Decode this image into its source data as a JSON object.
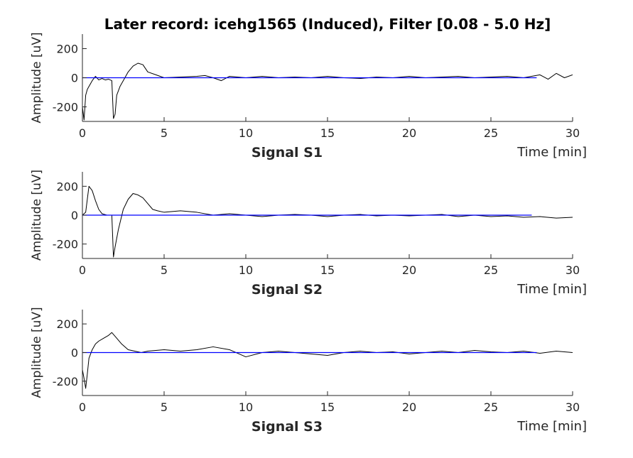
{
  "title": "Later record: icehg1565 (Induced), Filter [0.08 - 5.0 Hz]",
  "colors": {
    "raw": "#000000",
    "filtered": "#0000ff"
  },
  "chart_data": [
    {
      "type": "line",
      "xlabel": "Signal S1",
      "xunit_label": "Time [min]",
      "ylabel": "Amplitude [uV]",
      "xlim": [
        0,
        30
      ],
      "ylim": [
        -300,
        300
      ],
      "xticks": [
        0,
        5,
        10,
        15,
        20,
        25,
        30
      ],
      "yticks": [
        -200,
        0,
        200
      ],
      "series": [
        {
          "color": "#000000",
          "x": [
            0,
            0.1,
            0.2,
            0.3,
            0.4,
            0.6,
            0.8,
            1.0,
            1.2,
            1.4,
            1.6,
            1.8,
            1.9,
            2.0,
            2.1,
            2.3,
            2.5,
            2.8,
            3.1,
            3.4,
            3.7,
            4.0,
            4.5,
            5,
            6,
            7,
            7.5,
            8,
            8.5,
            9,
            10,
            11,
            12,
            13,
            14,
            15,
            16,
            17,
            18,
            19,
            20,
            21,
            22,
            23,
            24,
            25,
            26,
            27,
            28,
            28.5,
            29,
            29.5,
            30
          ],
          "values": [
            -200,
            -290,
            -120,
            -80,
            -60,
            -20,
            10,
            -15,
            -5,
            -15,
            -10,
            -20,
            -280,
            -250,
            -120,
            -60,
            -20,
            40,
            80,
            100,
            90,
            40,
            20,
            0,
            5,
            10,
            15,
            0,
            -20,
            10,
            0,
            10,
            0,
            5,
            0,
            10,
            0,
            -5,
            5,
            0,
            10,
            0,
            5,
            10,
            0,
            5,
            10,
            0,
            20,
            -10,
            30,
            0,
            20
          ]
        },
        {
          "color": "#0000ff",
          "x": [
            0,
            1,
            2,
            2.4,
            2.5,
            3,
            4,
            5,
            6,
            7,
            8,
            9,
            10,
            11,
            12,
            13,
            14,
            15,
            16,
            17,
            18,
            19,
            20,
            21,
            22,
            23,
            24,
            25,
            26,
            27,
            27.8
          ],
          "values": [
            0,
            0,
            0,
            0,
            0,
            0,
            0,
            0,
            0,
            0,
            0,
            0,
            0,
            0,
            0,
            0,
            0,
            0,
            0,
            0,
            0,
            0,
            0,
            0,
            0,
            0,
            0,
            0,
            0,
            0,
            0
          ]
        }
      ]
    },
    {
      "type": "line",
      "xlabel": "Signal S2",
      "xunit_label": "Time [min]",
      "ylabel": "Amplitude [uV]",
      "xlim": [
        0,
        30
      ],
      "ylim": [
        -300,
        300
      ],
      "xticks": [
        0,
        5,
        10,
        15,
        20,
        25,
        30
      ],
      "yticks": [
        -200,
        0,
        200
      ],
      "series": [
        {
          "color": "#000000",
          "x": [
            0,
            0.2,
            0.4,
            0.6,
            0.8,
            1.0,
            1.2,
            1.5,
            1.8,
            1.9,
            2.0,
            2.2,
            2.5,
            2.8,
            3.1,
            3.4,
            3.7,
            4.0,
            4.3,
            4.6,
            5,
            6,
            7,
            8,
            9,
            10,
            11,
            12,
            13,
            14,
            15,
            16,
            17,
            18,
            19,
            20,
            21,
            22,
            23,
            24,
            25,
            26,
            27,
            28,
            29,
            30
          ],
          "values": [
            0,
            20,
            200,
            170,
            100,
            40,
            10,
            0,
            0,
            -290,
            -220,
            -100,
            40,
            110,
            150,
            140,
            120,
            80,
            40,
            30,
            20,
            30,
            20,
            0,
            10,
            0,
            -10,
            0,
            5,
            0,
            -10,
            0,
            5,
            -5,
            0,
            -5,
            0,
            5,
            -10,
            0,
            -10,
            -5,
            -15,
            -10,
            -20,
            -15
          ]
        },
        {
          "color": "#0000ff",
          "x": [
            0,
            1,
            2,
            2.4,
            3,
            4,
            5,
            6,
            7,
            8,
            9,
            10,
            11,
            12,
            13,
            14,
            15,
            16,
            17,
            18,
            19,
            20,
            21,
            22,
            23,
            24,
            25,
            26,
            27,
            27.5
          ],
          "values": [
            0,
            0,
            0,
            0,
            0,
            0,
            0,
            0,
            0,
            0,
            0,
            0,
            0,
            0,
            0,
            0,
            0,
            0,
            0,
            0,
            0,
            0,
            0,
            0,
            0,
            0,
            0,
            0,
            0,
            0
          ]
        }
      ]
    },
    {
      "type": "line",
      "xlabel": "Signal S3",
      "xunit_label": "Time [min]",
      "ylabel": "Amplitude [uV]",
      "xlim": [
        0,
        30
      ],
      "ylim": [
        -300,
        300
      ],
      "xticks": [
        0,
        5,
        10,
        15,
        20,
        25,
        30
      ],
      "yticks": [
        -200,
        0,
        200
      ],
      "series": [
        {
          "color": "#000000",
          "x": [
            0,
            0.1,
            0.2,
            0.3,
            0.4,
            0.6,
            0.8,
            1.0,
            1.3,
            1.6,
            1.8,
            2.1,
            2.4,
            2.8,
            3.2,
            3.6,
            4,
            5,
            6,
            7,
            8,
            9,
            10,
            11,
            12,
            13,
            14,
            15,
            16,
            17,
            18,
            19,
            20,
            21,
            22,
            23,
            24,
            25,
            26,
            27,
            28,
            29,
            30
          ],
          "values": [
            -120,
            -180,
            -250,
            -150,
            -40,
            20,
            60,
            80,
            100,
            120,
            140,
            100,
            60,
            20,
            10,
            0,
            10,
            20,
            10,
            20,
            40,
            20,
            -30,
            0,
            10,
            0,
            -10,
            -20,
            0,
            10,
            0,
            5,
            -10,
            0,
            10,
            0,
            15,
            5,
            0,
            10,
            -5,
            10,
            0
          ]
        },
        {
          "color": "#0000ff",
          "x": [
            0,
            1,
            2,
            2.4,
            3,
            4,
            5,
            6,
            7,
            8,
            9,
            10,
            11,
            12,
            13,
            14,
            15,
            16,
            17,
            18,
            19,
            20,
            21,
            22,
            23,
            24,
            25,
            26,
            27,
            27.8
          ],
          "values": [
            0,
            0,
            0,
            0,
            0,
            0,
            0,
            0,
            0,
            0,
            0,
            0,
            0,
            0,
            0,
            0,
            0,
            0,
            0,
            0,
            0,
            0,
            0,
            0,
            0,
            0,
            0,
            0,
            0,
            0
          ]
        }
      ]
    }
  ]
}
